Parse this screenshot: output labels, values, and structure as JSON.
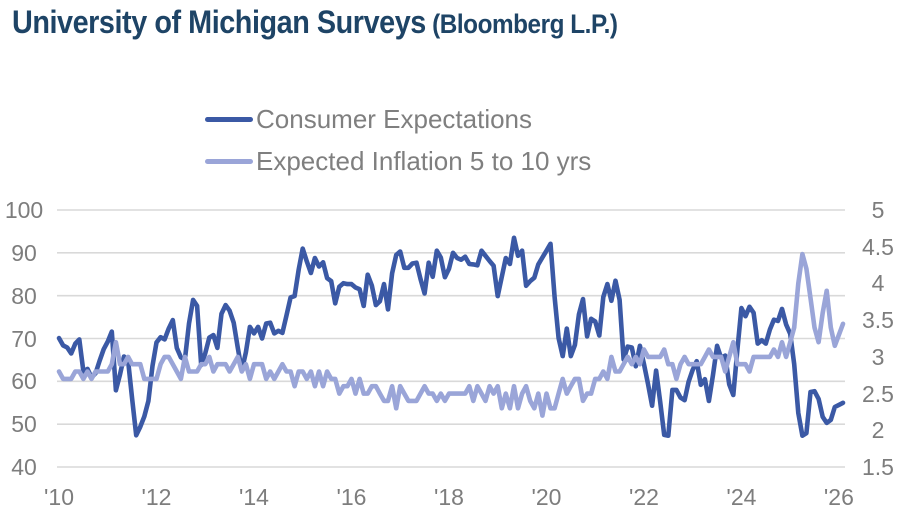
{
  "header": {
    "title": "University of Michigan Surveys",
    "source": "(Bloomberg L.P.)"
  },
  "legend": {
    "items": [
      {
        "label": "Consumer Expectations",
        "color": "#3B59A5"
      },
      {
        "label": "Expected Inflation 5 to 10 yrs",
        "color": "#9AA5D8"
      }
    ]
  },
  "colors": {
    "title_text": "#1E4466",
    "axis_text": "#7D7D7D",
    "legend_text": "#7F7F7F",
    "gridline": "#D9D9D9",
    "background": "#FFFFFF"
  },
  "chart_data": {
    "type": "line",
    "title": "University of Michigan Surveys (Bloomberg L.P.)",
    "frequency": "monthly",
    "x_start": "2010-01",
    "x_end": "2026-02",
    "x_tick_labels": [
      "'10",
      "'12",
      "'14",
      "'16",
      "'18",
      "'20",
      "'22",
      "'24",
      "'26"
    ],
    "x_tick_interval_months": 24,
    "grid": "horizontal",
    "legend_position": "top-center",
    "axes": {
      "left": {
        "min": 40,
        "max": 100,
        "ticks": [
          100,
          90,
          80,
          70,
          60,
          50,
          40
        ]
      },
      "right": {
        "min": 1.5,
        "max": 5,
        "ticks": [
          5,
          4.5,
          4,
          3.5,
          3,
          2.5,
          2,
          1.5
        ]
      }
    },
    "series": [
      {
        "name": "Consumer Expectations",
        "axis": "left",
        "color": "#3B59A5",
        "values": [
          70.1,
          68.4,
          67.9,
          66.5,
          68.8,
          69.8,
          62.3,
          62.9,
          60.9,
          61.9,
          64.8,
          67.5,
          69.3,
          71.6,
          57.9,
          61.6,
          65.8,
          64.8,
          56.0,
          47.4,
          49.4,
          51.8,
          55.4,
          63.6,
          69.1,
          70.3,
          69.8,
          72.3,
          74.3,
          67.8,
          65.6,
          65.1,
          73.5,
          79.0,
          77.6,
          63.8,
          66.6,
          70.2,
          70.8,
          67.8,
          75.8,
          77.8,
          76.5,
          73.7,
          67.8,
          62.5,
          66.8,
          72.7,
          71.2,
          72.7,
          70.0,
          73.5,
          73.7,
          71.2,
          71.8,
          71.3,
          75.4,
          79.6,
          79.9,
          86.1,
          91.0,
          88.0,
          85.3,
          88.8,
          86.8,
          87.8,
          84.1,
          83.4,
          78.2,
          82.1,
          82.9,
          82.7,
          82.7,
          81.9,
          81.5,
          77.6,
          84.9,
          82.4,
          77.8,
          78.7,
          82.7,
          76.8,
          85.2,
          89.5,
          90.3,
          86.5,
          86.5,
          87.5,
          87.7,
          83.9,
          80.5,
          87.7,
          84.4,
          90.5,
          88.9,
          84.3,
          86.3,
          90.0,
          88.8,
          88.4,
          89.1,
          87.4,
          87.3,
          87.1,
          90.5,
          89.3,
          88.1,
          87.0,
          79.9,
          84.4,
          88.8,
          87.4,
          93.5,
          89.3,
          90.5,
          82.3,
          83.4,
          84.2,
          87.3,
          88.9,
          90.5,
          92.1,
          79.7,
          70.1,
          65.9,
          72.3,
          65.9,
          68.5,
          75.6,
          79.2,
          70.5,
          74.6,
          74.0,
          70.7,
          79.7,
          82.7,
          78.8,
          83.5,
          79.0,
          65.1,
          68.1,
          67.9,
          63.5,
          68.3,
          64.1,
          59.4,
          54.3,
          62.5,
          55.2,
          47.5,
          47.3,
          58.0,
          58.0,
          56.2,
          55.6,
          59.9,
          62.7,
          64.7,
          59.2,
          60.5,
          55.4,
          61.5,
          68.3,
          65.5,
          66.0,
          59.3,
          56.8,
          67.4,
          77.1,
          75.2,
          77.4,
          76.0,
          68.8,
          69.6,
          68.8,
          72.1,
          74.4,
          74.1,
          76.9,
          73.3,
          71.1,
          64.0,
          52.6,
          47.3,
          47.9,
          57.5,
          57.7,
          55.9,
          51.7,
          50.3,
          51.0,
          54.0,
          54.5,
          55.0
        ]
      },
      {
        "name": "Expected Inflation 5 to 10 yrs",
        "axis": "right",
        "color": "#9AA5D8",
        "values": [
          2.8,
          2.7,
          2.7,
          2.7,
          2.8,
          2.8,
          2.7,
          2.8,
          2.7,
          2.8,
          2.8,
          2.8,
          2.8,
          2.9,
          3.2,
          2.9,
          2.9,
          3.0,
          2.9,
          2.9,
          2.9,
          2.7,
          2.7,
          2.7,
          2.7,
          2.9,
          3.0,
          3.0,
          2.9,
          2.8,
          2.7,
          3.0,
          2.8,
          2.8,
          2.8,
          2.9,
          2.9,
          3.0,
          2.8,
          2.9,
          2.9,
          2.9,
          2.8,
          2.9,
          3.0,
          2.8,
          2.9,
          2.7,
          2.9,
          2.9,
          2.9,
          2.7,
          2.8,
          2.7,
          2.8,
          2.9,
          2.8,
          2.8,
          2.6,
          2.8,
          2.8,
          2.7,
          2.8,
          2.6,
          2.8,
          2.6,
          2.8,
          2.7,
          2.7,
          2.5,
          2.6,
          2.6,
          2.7,
          2.5,
          2.7,
          2.5,
          2.5,
          2.6,
          2.6,
          2.5,
          2.4,
          2.4,
          2.6,
          2.3,
          2.6,
          2.5,
          2.4,
          2.4,
          2.4,
          2.5,
          2.6,
          2.5,
          2.5,
          2.4,
          2.5,
          2.4,
          2.5,
          2.5,
          2.5,
          2.5,
          2.5,
          2.6,
          2.4,
          2.6,
          2.5,
          2.4,
          2.6,
          2.5,
          2.6,
          2.3,
          2.5,
          2.3,
          2.6,
          2.3,
          2.5,
          2.6,
          2.4,
          2.3,
          2.5,
          2.2,
          2.5,
          2.3,
          2.3,
          2.5,
          2.7,
          2.5,
          2.6,
          2.7,
          2.7,
          2.4,
          2.5,
          2.5,
          2.7,
          2.7,
          2.8,
          2.7,
          3.0,
          2.8,
          2.8,
          2.9,
          3.0,
          2.9,
          3.0,
          2.9,
          3.1,
          3.0,
          3.0,
          3.0,
          3.0,
          3.1,
          2.9,
          2.9,
          2.7,
          2.9,
          3.0,
          2.9,
          2.9,
          2.9,
          2.9,
          3.0,
          3.1,
          3.0,
          3.0,
          3.0,
          2.8,
          3.0,
          3.2,
          2.9,
          2.9,
          2.9,
          2.8,
          3.0,
          3.0,
          3.0,
          3.0,
          3.0,
          3.1,
          3.0,
          3.2,
          3.0,
          3.2,
          3.4,
          4.0,
          4.4,
          4.2,
          3.8,
          3.4,
          3.2,
          3.6,
          3.9,
          3.4,
          3.15,
          3.3,
          3.45
        ]
      }
    ]
  }
}
